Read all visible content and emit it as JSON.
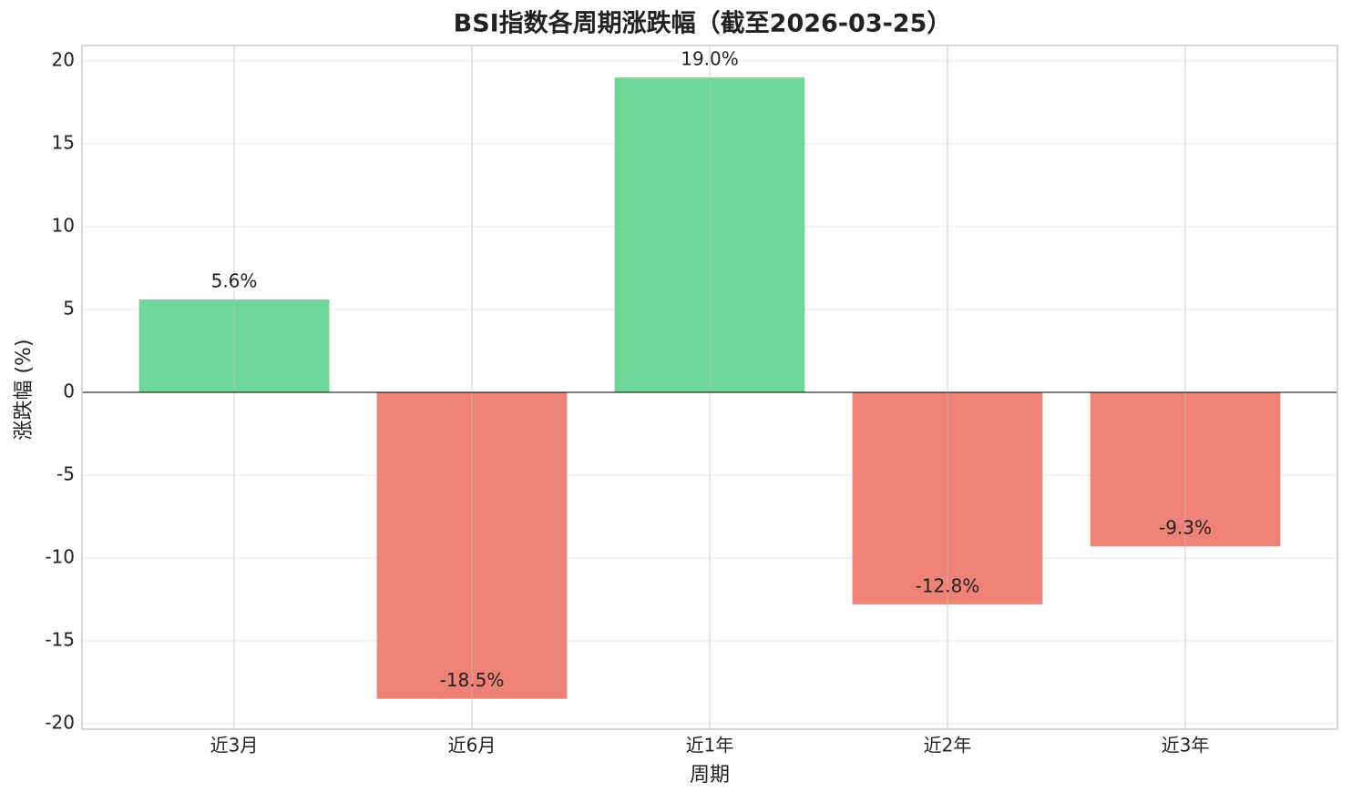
{
  "chart_data": {
    "type": "bar",
    "title": "BSI指数各周期涨跌幅（截至2026-03-25）",
    "xlabel": "周期",
    "ylabel": "涨跌幅 (%)",
    "categories": [
      "近3月",
      "近6月",
      "近1年",
      "近2年",
      "近3年"
    ],
    "values": [
      5.6,
      -18.5,
      19.0,
      -12.8,
      -9.3
    ],
    "value_labels": [
      "5.6%",
      "-18.5%",
      "19.0%",
      "-12.8%",
      "-9.3%"
    ],
    "colors": [
      "#6fd898",
      "#ee8276",
      "#6fd898",
      "#ee8276",
      "#ee8276"
    ],
    "ylim": [
      -20.33,
      20.93
    ],
    "yticks": [
      -20,
      -15,
      -10,
      -5,
      0,
      5,
      10,
      15,
      20
    ],
    "grid": true
  }
}
